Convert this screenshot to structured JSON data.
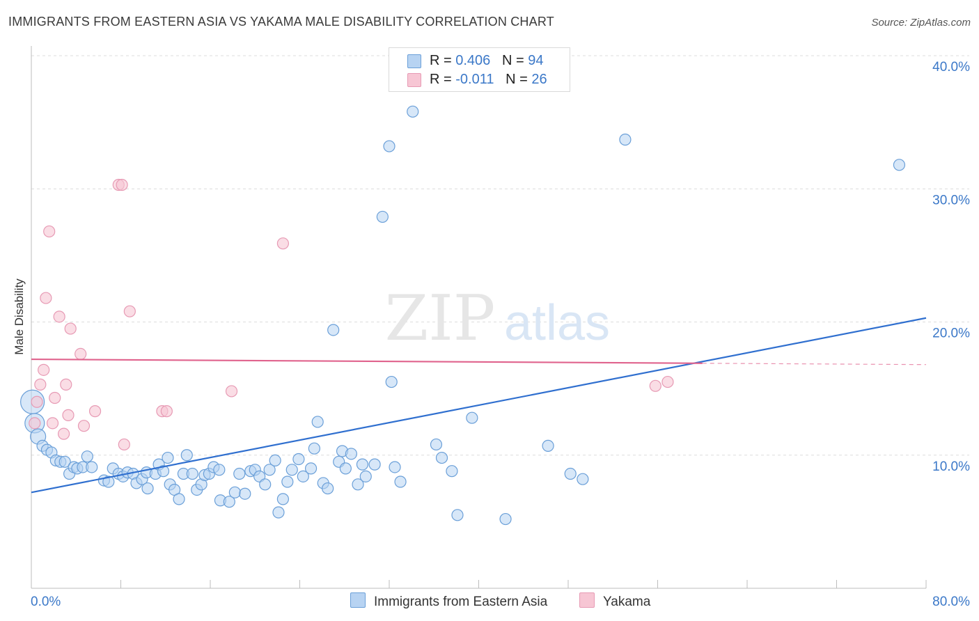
{
  "title": "IMMIGRANTS FROM EASTERN ASIA VS YAKAMA MALE DISABILITY CORRELATION CHART",
  "source": "Source: ZipAtlas.com",
  "watermark": {
    "zip": "ZIP",
    "atlas": "atlas"
  },
  "legend": {
    "r_label": "R =",
    "n_label": "N =",
    "series": [
      {
        "name": "Immigrants from Eastern Asia",
        "r": "0.406",
        "n": "94"
      },
      {
        "name": "Yakama",
        "r": "-0.011",
        "n": "26"
      }
    ]
  },
  "colors": {
    "blue_fill": "#b7d3f2",
    "blue_stroke": "#6a9fd8",
    "blue_line": "#2f6fcf",
    "pink_fill": "#f7c6d4",
    "pink_stroke": "#e79ab4",
    "pink_line": "#e0638d",
    "axis_text": "#3b78c8",
    "grid": "#dcdcdc"
  },
  "chart_data": {
    "type": "scatter",
    "title": "IMMIGRANTS FROM EASTERN ASIA VS YAKAMA MALE DISABILITY CORRELATION CHART",
    "xlabel": "",
    "ylabel": "Male Disability",
    "xlim": [
      0,
      80
    ],
    "ylim": [
      0,
      40
    ],
    "x_tick_labels": [
      {
        "value": 0,
        "label": "0.0%"
      },
      {
        "value": 80,
        "label": "80.0%"
      }
    ],
    "y_tick_labels": [
      {
        "value": 10,
        "label": "10.0%"
      },
      {
        "value": 20,
        "label": "20.0%"
      },
      {
        "value": 30,
        "label": "30.0%"
      },
      {
        "value": 40,
        "label": "40.0%"
      }
    ],
    "series": [
      {
        "name": "Immigrants from Eastern Asia",
        "color": "blue",
        "trendline": {
          "x": [
            0,
            80
          ],
          "y": [
            7.2,
            20.3
          ]
        },
        "points": [
          [
            0.1,
            14.0,
            4
          ],
          [
            0.3,
            12.4,
            3
          ],
          [
            0.6,
            11.4,
            2
          ],
          [
            1.0,
            10.7,
            1
          ],
          [
            1.4,
            10.4,
            1
          ],
          [
            1.8,
            10.2,
            1
          ],
          [
            2.2,
            9.6,
            1
          ],
          [
            2.6,
            9.5,
            1
          ],
          [
            3.0,
            9.5,
            1
          ],
          [
            3.4,
            8.6,
            1
          ],
          [
            3.8,
            9.1,
            1
          ],
          [
            4.1,
            9.0,
            1
          ],
          [
            4.6,
            9.1,
            1
          ],
          [
            5.0,
            9.9,
            1
          ],
          [
            5.4,
            9.1,
            1
          ],
          [
            6.5,
            8.1,
            1
          ],
          [
            6.9,
            8.0,
            1
          ],
          [
            7.3,
            9.0,
            1
          ],
          [
            7.8,
            8.6,
            1
          ],
          [
            8.2,
            8.4,
            1
          ],
          [
            8.6,
            8.7,
            1
          ],
          [
            9.1,
            8.6,
            1
          ],
          [
            9.4,
            7.9,
            1
          ],
          [
            9.9,
            8.2,
            1
          ],
          [
            10.3,
            8.7,
            1
          ],
          [
            10.4,
            7.5,
            1
          ],
          [
            11.1,
            8.6,
            1
          ],
          [
            11.4,
            9.3,
            1
          ],
          [
            11.8,
            8.8,
            1
          ],
          [
            12.2,
            9.8,
            1
          ],
          [
            12.4,
            7.8,
            1
          ],
          [
            12.8,
            7.4,
            1
          ],
          [
            13.2,
            6.7,
            1
          ],
          [
            13.6,
            8.6,
            1
          ],
          [
            13.9,
            10.0,
            1
          ],
          [
            14.4,
            8.6,
            1
          ],
          [
            14.8,
            7.4,
            1
          ],
          [
            15.2,
            7.8,
            1
          ],
          [
            15.5,
            8.5,
            1
          ],
          [
            15.9,
            8.6,
            1
          ],
          [
            16.3,
            9.1,
            1
          ],
          [
            16.8,
            8.9,
            1
          ],
          [
            16.9,
            6.6,
            1
          ],
          [
            17.7,
            6.5,
            1
          ],
          [
            18.2,
            7.2,
            1
          ],
          [
            18.6,
            8.6,
            1
          ],
          [
            19.1,
            7.1,
            1
          ],
          [
            19.6,
            8.8,
            1
          ],
          [
            20.0,
            8.9,
            1
          ],
          [
            20.4,
            8.4,
            1
          ],
          [
            20.9,
            7.8,
            1
          ],
          [
            21.3,
            8.9,
            1
          ],
          [
            21.8,
            9.6,
            1
          ],
          [
            22.1,
            5.7,
            1
          ],
          [
            22.5,
            6.7,
            1
          ],
          [
            22.9,
            8.0,
            1
          ],
          [
            23.3,
            8.9,
            1
          ],
          [
            23.9,
            9.7,
            1
          ],
          [
            24.3,
            8.4,
            1
          ],
          [
            25.0,
            9.0,
            1
          ],
          [
            25.3,
            10.5,
            1
          ],
          [
            25.6,
            12.5,
            1
          ],
          [
            26.1,
            7.9,
            1
          ],
          [
            26.5,
            7.5,
            1
          ],
          [
            27.0,
            19.4,
            1
          ],
          [
            27.5,
            9.5,
            1
          ],
          [
            27.8,
            10.3,
            1
          ],
          [
            28.1,
            9.0,
            1
          ],
          [
            28.6,
            10.1,
            1
          ],
          [
            29.2,
            7.8,
            1
          ],
          [
            29.6,
            9.3,
            1
          ],
          [
            29.9,
            8.4,
            1
          ],
          [
            30.7,
            9.3,
            1
          ],
          [
            31.4,
            27.9,
            1
          ],
          [
            32.0,
            33.2,
            1
          ],
          [
            32.2,
            15.5,
            1
          ],
          [
            32.5,
            9.1,
            1
          ],
          [
            33.0,
            8.0,
            1
          ],
          [
            34.1,
            35.8,
            1
          ],
          [
            36.2,
            10.8,
            1
          ],
          [
            36.7,
            9.8,
            1
          ],
          [
            37.6,
            8.8,
            1
          ],
          [
            38.1,
            5.5,
            1
          ],
          [
            39.4,
            12.8,
            1
          ],
          [
            42.4,
            5.2,
            1
          ],
          [
            46.2,
            10.7,
            1
          ],
          [
            48.2,
            8.6,
            1
          ],
          [
            49.3,
            8.2,
            1
          ],
          [
            53.1,
            33.7,
            1
          ],
          [
            77.6,
            31.8,
            1
          ]
        ]
      },
      {
        "name": "Yakama",
        "color": "pink",
        "trendline": {
          "x": [
            0,
            80
          ],
          "y": [
            17.2,
            16.8
          ],
          "solid_until": 60
        },
        "points": [
          [
            0.3,
            12.4,
            1
          ],
          [
            0.5,
            14.0,
            1
          ],
          [
            0.8,
            15.3,
            1
          ],
          [
            1.1,
            16.4,
            1
          ],
          [
            1.3,
            21.8,
            1
          ],
          [
            1.6,
            26.8,
            1
          ],
          [
            1.9,
            12.4,
            1
          ],
          [
            2.1,
            14.3,
            1
          ],
          [
            2.5,
            20.4,
            1
          ],
          [
            2.9,
            11.6,
            1
          ],
          [
            3.1,
            15.3,
            1
          ],
          [
            3.3,
            13.0,
            1
          ],
          [
            3.5,
            19.5,
            1
          ],
          [
            4.4,
            17.6,
            1
          ],
          [
            4.7,
            12.2,
            1
          ],
          [
            5.7,
            13.3,
            1
          ],
          [
            7.8,
            30.3,
            1
          ],
          [
            8.1,
            30.3,
            1
          ],
          [
            8.3,
            10.8,
            1
          ],
          [
            8.8,
            20.8,
            1
          ],
          [
            11.7,
            13.3,
            1
          ],
          [
            12.1,
            13.3,
            1
          ],
          [
            17.9,
            14.8,
            1
          ],
          [
            22.5,
            25.9,
            1
          ],
          [
            55.8,
            15.2,
            1
          ],
          [
            56.9,
            15.5,
            1
          ]
        ]
      }
    ]
  }
}
